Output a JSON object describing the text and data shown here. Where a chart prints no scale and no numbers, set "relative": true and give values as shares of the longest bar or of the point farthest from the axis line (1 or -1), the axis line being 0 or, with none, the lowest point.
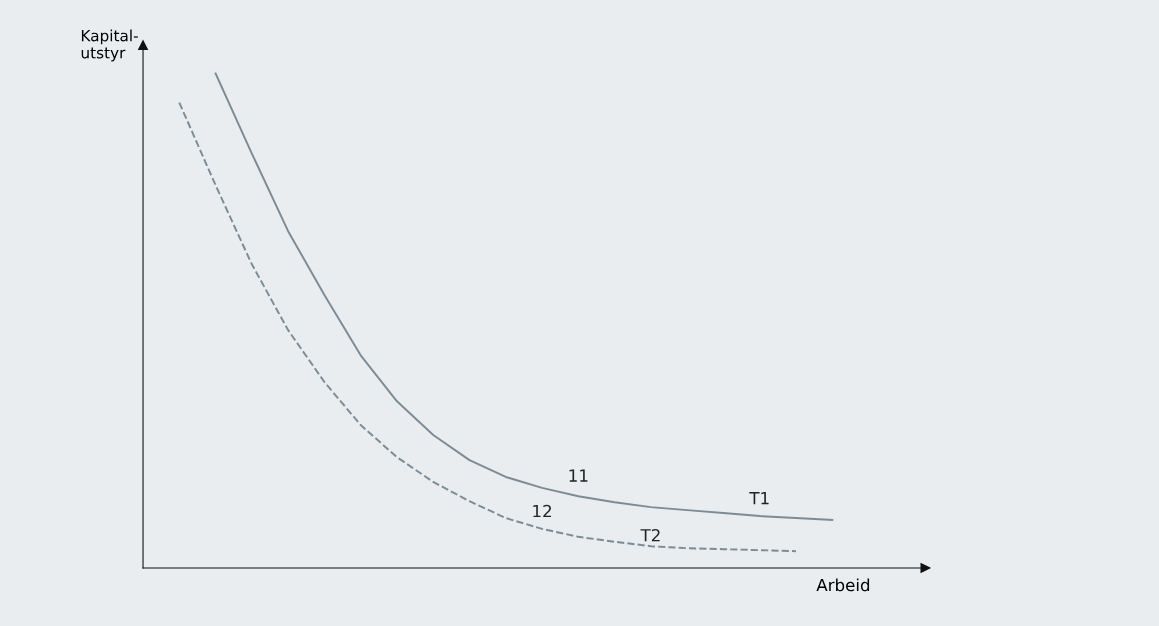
{
  "chart_data": {
    "type": "line",
    "relative": true,
    "xlabel": "Arbeid",
    "ylabel": "Kapital-\nutstyr",
    "marker": "none",
    "categories": [
      null,
      null,
      null,
      null,
      null,
      null,
      null,
      null,
      null,
      null,
      null,
      null,
      null,
      null,
      null,
      null,
      null,
      null,
      null,
      null
    ],
    "series": [
      {
        "name": "T1",
        "color": "#7d8b95",
        "line_style": "solid",
        "values": [
          null,
          null,
          1,
          0.838,
          0.681,
          0.552,
          0.43,
          0.337,
          0.269,
          0.218,
          0.184,
          0.162,
          0.145,
          0.133,
          0.123,
          0.117,
          0.111,
          0.105,
          0.101,
          0.097
        ]
      },
      {
        "name": "T2",
        "color": "#7d8b95",
        "line_style": "dashed",
        "values": [
          null,
          0.941,
          0.774,
          0.614,
          0.481,
          0.376,
          0.289,
          0.224,
          0.174,
          0.135,
          0.101,
          0.079,
          0.063,
          0.053,
          0.044,
          0.04,
          0.038,
          0.036,
          0.034,
          null
        ]
      }
    ],
    "annotations": [
      "11",
      "12"
    ]
  }
}
